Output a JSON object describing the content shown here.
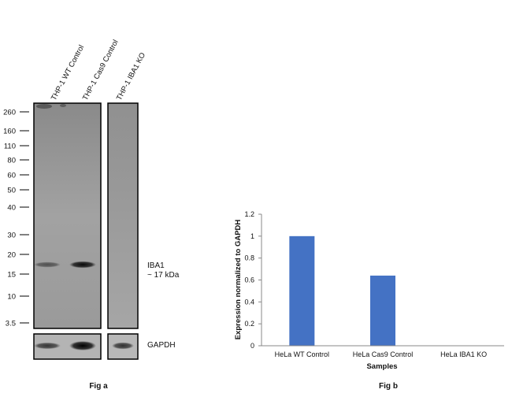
{
  "fig_a": {
    "caption": "Fig a",
    "lane_labels": [
      "THP-1 WT Control",
      "THP-1 Cas9 Control",
      "THP-1 IBA1  KO"
    ],
    "markers": [
      "260",
      "160",
      "110",
      "80",
      "60",
      "50",
      "40",
      "30",
      "20",
      "15",
      "10",
      "3.5"
    ],
    "band_label_line1": "IBA1",
    "band_label_line2": "~ 17 kDa",
    "loading_label": "GAPDH",
    "iba1_band_intensity": [
      0.5,
      0.95,
      0
    ],
    "gapdh_band_intensity": [
      0.55,
      1.0,
      0.6
    ]
  },
  "fig_b": {
    "caption": "Fig b"
  },
  "chart_data": {
    "type": "bar",
    "categories": [
      "HeLa WT Control",
      "HeLa Cas9 Control",
      "HeLa IBA1 KO"
    ],
    "values": [
      1.0,
      0.64,
      0
    ],
    "title": "",
    "xlabel": "Samples",
    "ylabel": "Expression normalized to GAPDH",
    "ylim": [
      0,
      1.2
    ],
    "yticks": [
      "0",
      "0.2",
      "0.4",
      "0.6",
      "0.8",
      "1",
      "1.2"
    ],
    "bar_color": "#4472C4",
    "grid": false,
    "legend": "none"
  }
}
